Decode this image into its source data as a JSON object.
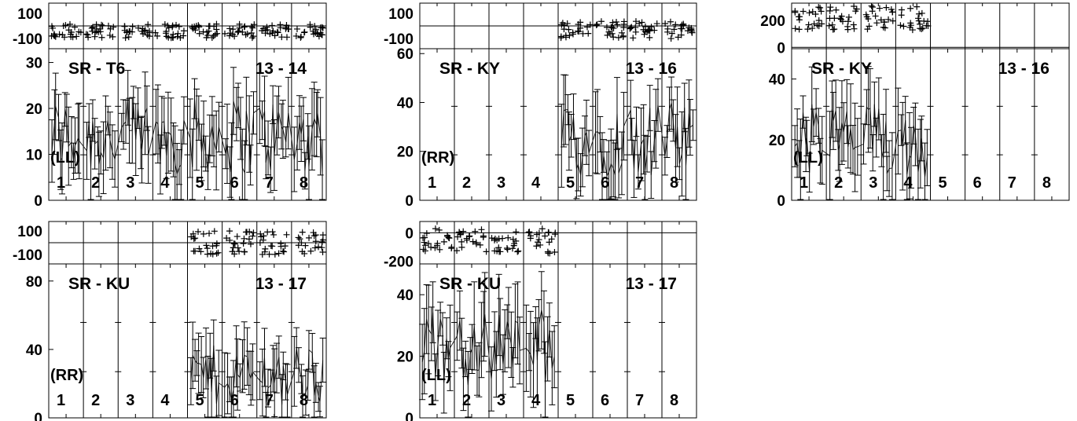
{
  "chart_data": [
    {
      "type": "scatter",
      "baseline": "SR - T6",
      "channels": "13 - 14",
      "polarization": "(LL)",
      "channel_labels": [
        "1",
        "2",
        "3",
        "4",
        "5",
        "6",
        "7",
        "8"
      ],
      "phase_ticks": [
        "100",
        "-100"
      ],
      "amp_ticks": [
        "0",
        "10",
        "20",
        "30"
      ],
      "amp_range": [
        0,
        33
      ],
      "phase_range": [
        -180,
        180
      ],
      "active_channels": [
        1,
        2,
        3,
        4,
        5,
        6,
        7,
        8
      ],
      "samples_per_channel": 14,
      "amp_mean": 14,
      "amp_spread": 12,
      "err_half": 6,
      "phase_mean": -40,
      "phase_spread": 55
    },
    {
      "type": "scatter",
      "baseline": "SR - KY",
      "channels": "13 - 16",
      "polarization": "(RR)",
      "channel_labels": [
        "1",
        "2",
        "3",
        "4",
        "5",
        "6",
        "7",
        "8"
      ],
      "phase_ticks": [
        "100",
        "-100"
      ],
      "amp_ticks": [
        "0",
        "20",
        "40",
        "60"
      ],
      "amp_range": [
        0,
        62
      ],
      "phase_range": [
        -180,
        180
      ],
      "active_channels": [
        5,
        6,
        7,
        8
      ],
      "samples_per_channel": 14,
      "amp_mean": 25,
      "amp_spread": 22,
      "err_half": 12,
      "phase_mean": -30,
      "phase_spread": 70
    },
    {
      "type": "scatter",
      "baseline": "SR - KY",
      "channels": "13 - 16",
      "polarization": "(LL)",
      "channel_labels": [
        "1",
        "2",
        "3",
        "4",
        "5",
        "6",
        "7",
        "8"
      ],
      "phase_ticks": [
        "200",
        "0"
      ],
      "amp_ticks": [
        "0",
        "20",
        "40"
      ],
      "amp_range": [
        0,
        50
      ],
      "phase_range": [
        -10,
        330
      ],
      "active_channels": [
        1,
        2,
        3,
        4
      ],
      "samples_per_channel": 14,
      "amp_mean": 20,
      "amp_spread": 18,
      "err_half": 10,
      "phase_mean": 220,
      "phase_spread": 90
    },
    {
      "type": "scatter",
      "baseline": "SR - KU",
      "channels": "13 - 17",
      "polarization": "(RR)",
      "channel_labels": [
        "1",
        "2",
        "3",
        "4",
        "5",
        "6",
        "7",
        "8"
      ],
      "phase_ticks": [
        "100",
        "-100"
      ],
      "amp_ticks": [
        "0",
        "40",
        "80"
      ],
      "amp_range": [
        0,
        90
      ],
      "phase_range": [
        -180,
        180
      ],
      "active_channels": [
        5,
        6,
        7,
        8
      ],
      "samples_per_channel": 14,
      "amp_mean": 25,
      "amp_spread": 25,
      "err_half": 14,
      "phase_mean": 0,
      "phase_spread": 100
    },
    {
      "type": "scatter",
      "baseline": "SR - KU",
      "channels": "13 - 17",
      "polarization": "(LL)",
      "channel_labels": [
        "1",
        "2",
        "3",
        "4",
        "5",
        "6",
        "7",
        "8"
      ],
      "phase_ticks": [
        "0",
        "-200"
      ],
      "amp_ticks": [
        "0",
        "20",
        "40"
      ],
      "amp_range": [
        0,
        50
      ],
      "phase_range": [
        -220,
        80
      ],
      "active_channels": [
        1,
        2,
        3,
        4
      ],
      "samples_per_channel": 14,
      "amp_mean": 23,
      "amp_spread": 18,
      "err_half": 10,
      "phase_mean": -60,
      "phase_spread": 90
    }
  ]
}
